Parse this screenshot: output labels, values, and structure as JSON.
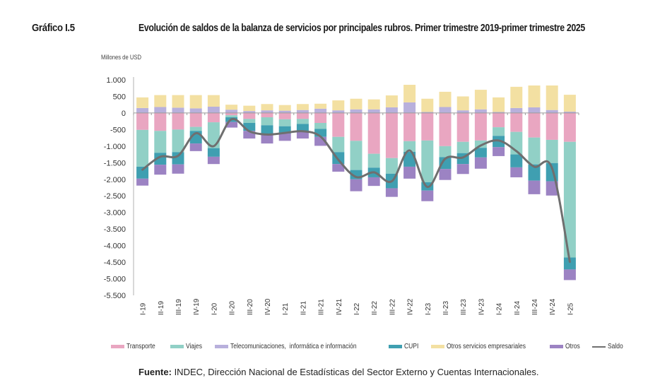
{
  "header": {
    "figure_number": "Gráfico I.5",
    "title": "Evolución de saldos de la balanza de servicios por principales rubros. Primer trimestre 2019-primer trimestre 2025"
  },
  "source": {
    "label": "Fuente:",
    "text": " INDEC, Dirección Nacional de Estadísticas del Sector Externo y Cuentas Internacionales."
  },
  "chart_data": {
    "type": "bar",
    "stacked": true,
    "title": "Evolución de saldos de la balanza de servicios por principales rubros. Primer trimestre 2019-primer trimestre 2025",
    "ylabel": "Millones de USD",
    "xlabel": "",
    "ylim": [
      -5500,
      1000
    ],
    "yticks": [
      1000,
      500,
      0,
      -500,
      -1000,
      -1500,
      -2000,
      -2500,
      -3000,
      -3500,
      -4000,
      -4500,
      -5000,
      -5500
    ],
    "ytick_labels": [
      "1.000",
      "500",
      "0",
      "-500",
      "-1.000",
      "-1.500",
      "-2.000",
      "-2.500",
      "-3.000",
      "-3.500",
      "-4.000",
      "-4.500",
      "-5.000",
      "-5.500"
    ],
    "grid": false,
    "legend_position": "bottom",
    "categories": [
      "I-19",
      "II-19",
      "III-19",
      "IV-19",
      "I-20",
      "II-20",
      "III-20",
      "IV-20",
      "I-21",
      "II-21",
      "III-21",
      "IV-21",
      "I-22",
      "II-22",
      "III-22",
      "IV-22",
      "I-23",
      "II-23",
      "III-23",
      "IV-23",
      "I-24",
      "II-24",
      "III-24",
      "IV-24",
      "I-25"
    ],
    "series": [
      {
        "name": "Transporte",
        "color": "#e9a6c1",
        "values": [
          -510,
          -540,
          -500,
          -420,
          -280,
          -70,
          -180,
          -130,
          -190,
          -180,
          -300,
          -720,
          -840,
          -1230,
          -1360,
          -850,
          -830,
          -1000,
          -870,
          -830,
          -430,
          -570,
          -740,
          -810,
          -870
        ]
      },
      {
        "name": "Viajes",
        "color": "#91d0c6",
        "values": [
          -1110,
          -660,
          -680,
          -120,
          -780,
          -60,
          -120,
          -240,
          -210,
          -150,
          -180,
          -460,
          -880,
          -420,
          -470,
          -320,
          -1260,
          -330,
          -340,
          -220,
          -260,
          -680,
          -810,
          -700,
          -3490
        ]
      },
      {
        "name": "Telecomunicaciones,  informática e información",
        "color": "#b8b0dc",
        "values": [
          150,
          180,
          160,
          140,
          190,
          100,
          60,
          80,
          70,
          90,
          130,
          80,
          110,
          110,
          170,
          320,
          30,
          180,
          80,
          110,
          30,
          150,
          170,
          90,
          40
        ]
      },
      {
        "name": "CUPI",
        "color": "#3f9fb1",
        "values": [
          -360,
          -360,
          -370,
          -380,
          -260,
          -140,
          -240,
          -260,
          -220,
          -220,
          -240,
          -360,
          -280,
          -290,
          -440,
          -450,
          -250,
          -360,
          -330,
          -290,
          -340,
          -390,
          -490,
          -550,
          -360
        ]
      },
      {
        "name": "Otros servicios empresariales",
        "color": "#f3e0a2",
        "values": [
          320,
          360,
          380,
          400,
          350,
          150,
          160,
          190,
          170,
          180,
          150,
          300,
          320,
          300,
          360,
          530,
          400,
          460,
          420,
          590,
          440,
          640,
          660,
          740,
          510
        ]
      },
      {
        "name": "Otros",
        "color": "#9c83c3",
        "values": [
          -210,
          -300,
          -280,
          -230,
          -220,
          -170,
          -230,
          -290,
          -220,
          -220,
          -270,
          -230,
          -360,
          -260,
          -260,
          -360,
          -320,
          -330,
          -300,
          -340,
          -270,
          -300,
          -410,
          -430,
          -320
        ]
      }
    ],
    "line": {
      "name": "Saldo",
      "color": "#6f6f6f",
      "values": [
        -1710,
        -1320,
        -1290,
        -610,
        -1000,
        -190,
        -550,
        -650,
        -600,
        -550,
        -710,
        -1410,
        -1930,
        -1790,
        -2060,
        -1130,
        -2230,
        -1380,
        -1340,
        -980,
        -830,
        -1150,
        -1620,
        -1660,
        -4490
      ]
    }
  }
}
